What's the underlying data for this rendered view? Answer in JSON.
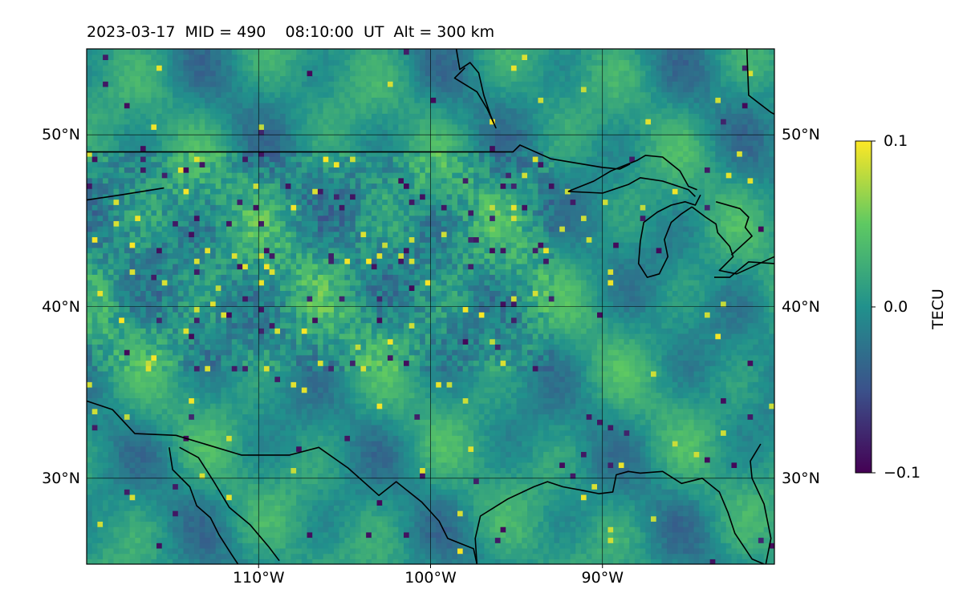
{
  "title": "2023-03-17  MID = 490    08:10:00  UT  Alt = 300 km",
  "map": {
    "extent": {
      "lon": [
        -120,
        -80
      ],
      "lat": [
        25,
        55
      ]
    },
    "lon_ticks": [
      {
        "value": -110,
        "label": "110°W"
      },
      {
        "value": -100,
        "label": "100°W"
      },
      {
        "value": -90,
        "label": "90°W"
      }
    ],
    "lat_ticks": [
      {
        "value": 50,
        "label": "50°N"
      },
      {
        "value": 40,
        "label": "40°N"
      },
      {
        "value": 30,
        "label": "30°N"
      }
    ],
    "colormap": "viridis",
    "grid": true
  },
  "colorbar": {
    "label": "TECU",
    "vmin": -0.1,
    "vmax": 0.1,
    "ticks": [
      {
        "value": 0.1,
        "label": "0.1"
      },
      {
        "value": 0.0,
        "label": "0.0"
      },
      {
        "value": -0.1,
        "label": "−0.1"
      }
    ],
    "colors": [
      "#440154",
      "#3b528b",
      "#21918c",
      "#5ec962",
      "#fde725"
    ]
  }
}
